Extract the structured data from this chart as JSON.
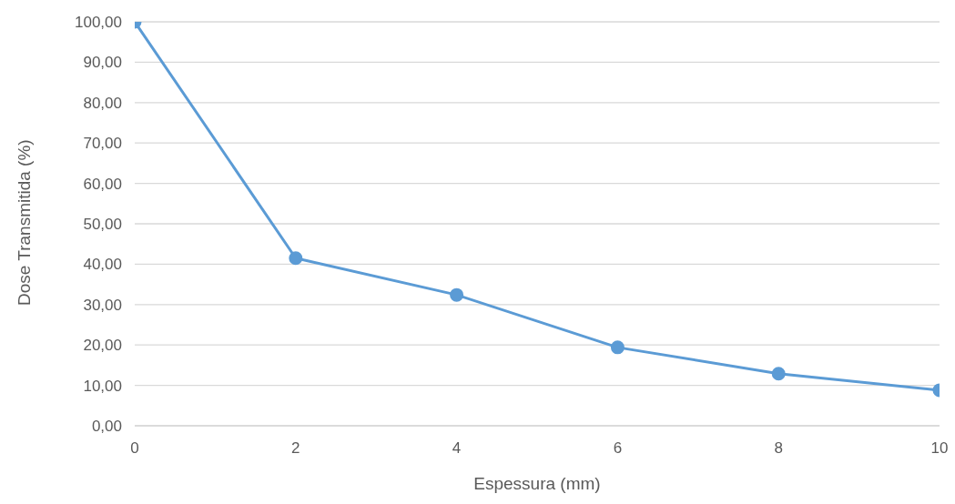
{
  "chart_data": {
    "type": "line",
    "xlabel": "Espessura (mm)",
    "ylabel": "Dose Transmitida (%)",
    "x": [
      0,
      2,
      4,
      6,
      8,
      10
    ],
    "series": [
      {
        "color": "#5b9bd5",
        "values": [
          100,
          41.5,
          32.4,
          19.4,
          12.9,
          8.8
        ]
      }
    ],
    "xlim": [
      0,
      10
    ],
    "xticks": [
      0,
      2,
      4,
      6,
      8,
      10
    ],
    "ylim": [
      0,
      100
    ],
    "yticks": [
      {
        "value": 0,
        "label": "0,00"
      },
      {
        "value": 10,
        "label": "10,00"
      },
      {
        "value": 20,
        "label": "20,00"
      },
      {
        "value": 30,
        "label": "30,00"
      },
      {
        "value": 40,
        "label": "40,00"
      },
      {
        "value": 50,
        "label": "50,00"
      },
      {
        "value": 60,
        "label": "60,00"
      },
      {
        "value": 70,
        "label": "70,00"
      },
      {
        "value": 80,
        "label": "80,00"
      },
      {
        "value": 90,
        "label": "90,00"
      },
      {
        "value": 100,
        "label": "100,00"
      }
    ],
    "grid": "y",
    "legend": false,
    "marker": "circle",
    "line_style": "solid"
  }
}
